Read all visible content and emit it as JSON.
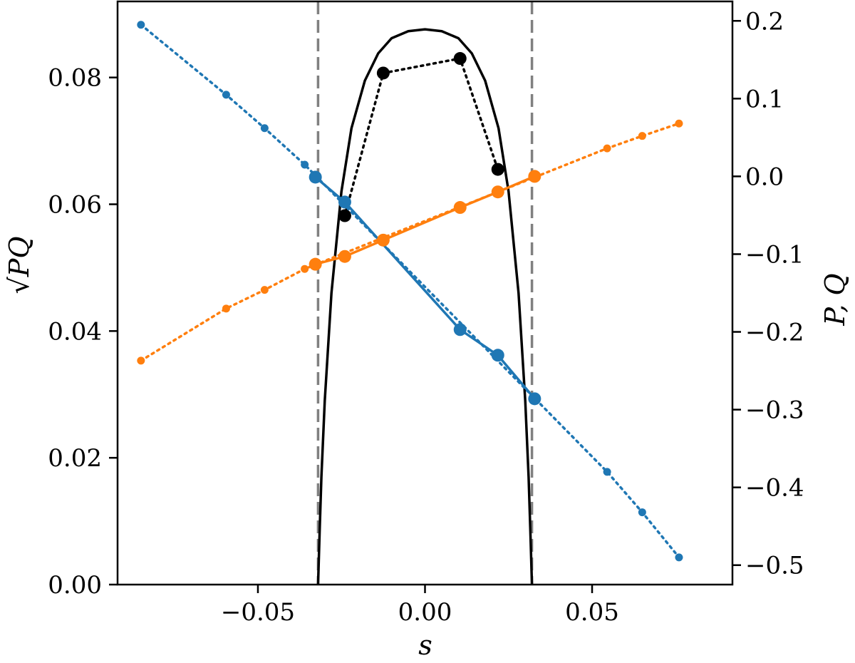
{
  "chart_data": {
    "type": "line",
    "xlabel": "s",
    "ylabel_left": "√PQ",
    "ylabel_right": "P, Q",
    "xlim": [
      -0.092,
      0.092
    ],
    "ylim_left": [
      0.0,
      0.092
    ],
    "ylim_right": [
      -0.525,
      0.225
    ],
    "x_ticks": [
      {
        "value": -0.05,
        "label": "−0.05"
      },
      {
        "value": 0.0,
        "label": "0.00"
      },
      {
        "value": 0.05,
        "label": "0.05"
      }
    ],
    "y_left_ticks": [
      {
        "value": 0.0,
        "label": "0.00"
      },
      {
        "value": 0.02,
        "label": "0.02"
      },
      {
        "value": 0.04,
        "label": "0.04"
      },
      {
        "value": 0.06,
        "label": "0.06"
      },
      {
        "value": 0.08,
        "label": "0.08"
      }
    ],
    "y_right_ticks": [
      {
        "value": 0.2,
        "label": "0.2"
      },
      {
        "value": 0.1,
        "label": "0.1"
      },
      {
        "value": 0.0,
        "label": "0.0"
      },
      {
        "value": -0.1,
        "label": "−0.1"
      },
      {
        "value": -0.2,
        "label": "−0.2"
      },
      {
        "value": -0.3,
        "label": "−0.3"
      },
      {
        "value": -0.4,
        "label": "−0.4"
      },
      {
        "value": -0.5,
        "label": "−0.5"
      }
    ],
    "vertical_lines": [
      -0.032,
      0.032
    ],
    "grid": false,
    "series": [
      {
        "axis": "left",
        "color": "#000000",
        "style": "solid",
        "x": [
          -0.032,
          -0.0315,
          -0.031,
          -0.03,
          -0.028,
          -0.025,
          -0.022,
          -0.018,
          -0.014,
          -0.01,
          -0.005,
          0.0,
          0.005,
          0.01,
          0.014,
          0.018,
          0.022,
          0.025,
          0.028,
          0.03,
          0.031,
          0.0315,
          0.032
        ],
        "y": [
          0.0,
          0.009,
          0.017,
          0.029,
          0.046,
          0.062,
          0.072,
          0.0795,
          0.0838,
          0.0862,
          0.0873,
          0.0876,
          0.0873,
          0.0862,
          0.0838,
          0.0795,
          0.072,
          0.062,
          0.046,
          0.029,
          0.017,
          0.009,
          0.0
        ]
      },
      {
        "axis": "left",
        "color": "#000000",
        "style": "dotted",
        "marker": "large",
        "x": [
          -0.024,
          -0.0125,
          0.0105,
          0.0218
        ],
        "y": [
          0.0582,
          0.0807,
          0.083,
          0.0655
        ]
      },
      {
        "axis": "right",
        "color": "#1f77b4",
        "style": "dotted",
        "marker": "small",
        "x": [
          -0.085,
          -0.0595,
          -0.048,
          -0.036,
          0.0545,
          0.065,
          0.076
        ],
        "y": [
          0.195,
          0.105,
          0.062,
          0.015,
          -0.38,
          -0.432,
          -0.49
        ]
      },
      {
        "axis": "right",
        "color": "#1f77b4",
        "style": "solid",
        "marker": "large",
        "x": [
          -0.0328,
          -0.024,
          0.0105,
          0.0218,
          0.0328
        ],
        "y": [
          -0.001,
          -0.033,
          -0.197,
          -0.23,
          -0.286
        ]
      },
      {
        "axis": "right",
        "color": "#ff7f0e",
        "style": "dotted",
        "marker": "small",
        "x": [
          -0.085,
          -0.0595,
          -0.048,
          -0.036,
          0.0545,
          0.065,
          0.076
        ],
        "y": [
          -0.237,
          -0.17,
          -0.146,
          -0.119,
          0.036,
          0.052,
          0.068
        ]
      },
      {
        "axis": "right",
        "color": "#ff7f0e",
        "style": "solid",
        "marker": "large",
        "x": [
          -0.0328,
          -0.024,
          -0.0125,
          0.0105,
          0.0218,
          0.0328
        ],
        "y": [
          -0.113,
          -0.103,
          -0.082,
          -0.04,
          -0.02,
          0.0
        ]
      }
    ]
  }
}
